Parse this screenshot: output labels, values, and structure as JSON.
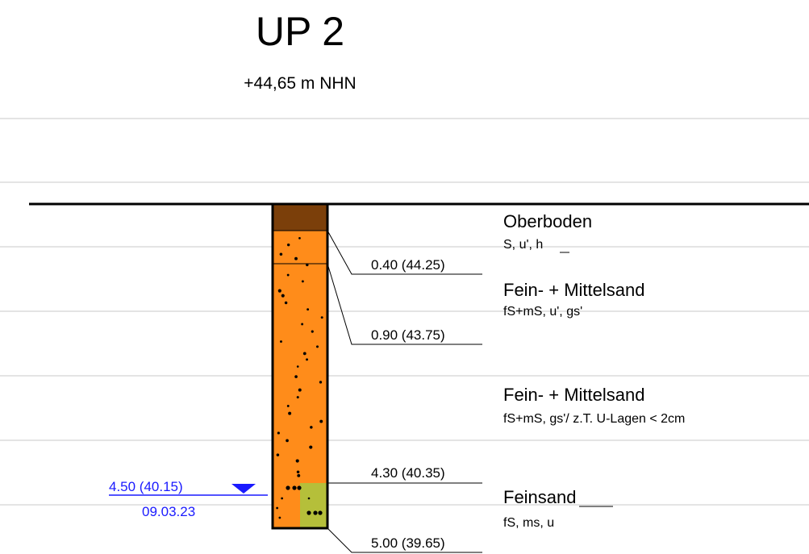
{
  "title": "UP 2",
  "elevation": "+44,65 m NHN",
  "layers": [
    {
      "name": "Oberboden",
      "description": "S, u', h"
    },
    {
      "name": "Fein- + Mittelsand",
      "description": "fS+mS, u', gs'"
    },
    {
      "name": "Fein- + Mittelsand",
      "description": "fS+mS, gs'/ z.T. U-Lagen < 2cm"
    },
    {
      "name": "Feinsand",
      "description": "fS, ms, u"
    }
  ],
  "depth_labels": [
    "0.40 (44.25)",
    "0.90 (43.75)",
    "4.30 (40.35)",
    "5.00 (39.65)"
  ],
  "water_level": {
    "depth": "4.50 (40.15)",
    "date": "09.03.23"
  }
}
